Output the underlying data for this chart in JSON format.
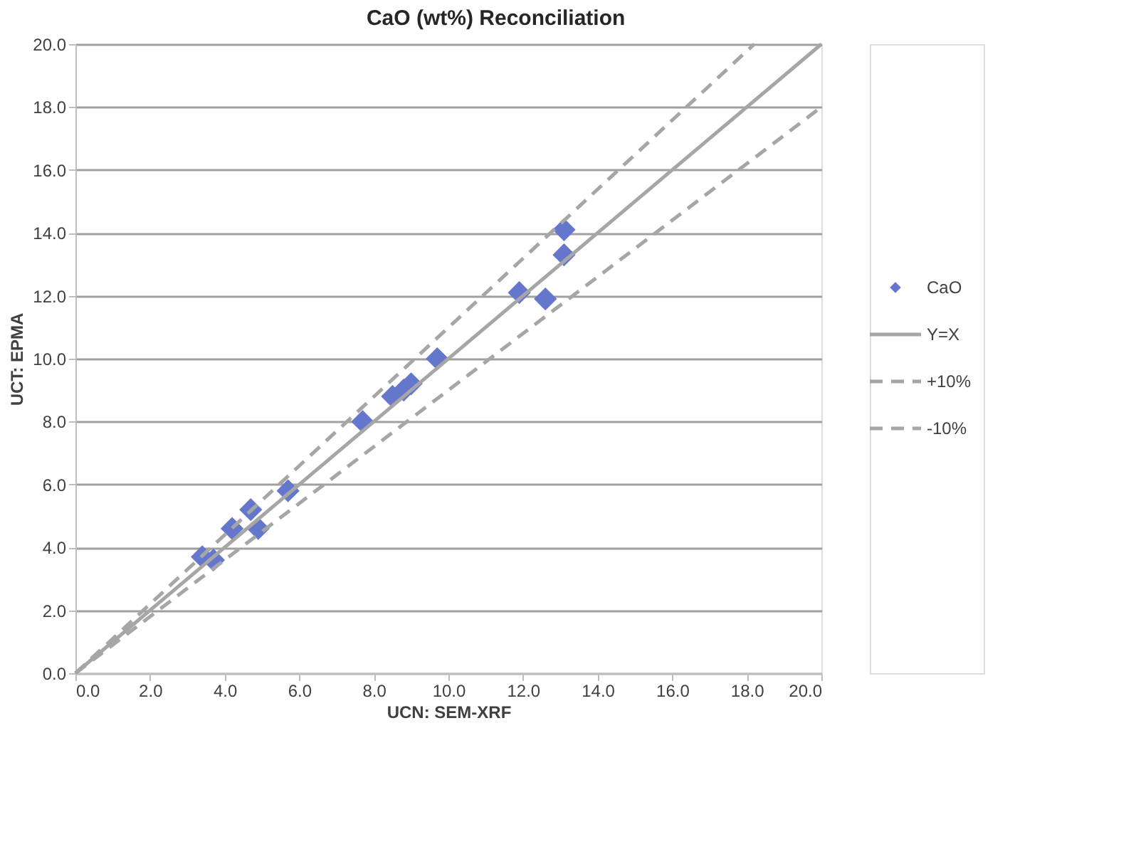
{
  "chart_data": {
    "type": "scatter",
    "title": "CaO (wt%) Reconciliation",
    "xlabel": "UCN: SEM-XRF",
    "ylabel": "UCT: EPMA",
    "x": [
      13.1,
      13.1,
      11.9,
      12.6,
      9.7,
      9.0,
      8.8,
      8.5,
      7.7,
      5.7,
      4.7,
      4.9,
      4.2,
      3.4,
      3.7
    ],
    "series": [
      {
        "name": "CaO",
        "type": "scatter",
        "color": "#6577cc",
        "marker": "diamond",
        "values": [
          14.1,
          13.3,
          12.1,
          11.9,
          10.0,
          9.2,
          9.0,
          8.8,
          8.0,
          5.8,
          5.2,
          4.6,
          4.6,
          3.7,
          3.6
        ]
      },
      {
        "name": "Y=X",
        "type": "line",
        "color": "#a6a6a6",
        "line_style": "solid",
        "marker": "none",
        "x": [
          0,
          20
        ],
        "values": [
          0,
          20
        ]
      },
      {
        "name": "+10%",
        "type": "line",
        "color": "#a6a6a6",
        "line_style": "dashed",
        "marker": "none",
        "x": [
          0,
          18.2
        ],
        "values": [
          0,
          20
        ]
      },
      {
        "name": "-10%",
        "type": "line",
        "color": "#a6a6a6",
        "line_style": "dashed",
        "marker": "none",
        "x": [
          0,
          20
        ],
        "values": [
          0,
          18
        ]
      }
    ],
    "xlim": [
      0,
      20
    ],
    "ylim": [
      0,
      20
    ],
    "xticks": [
      {
        "value": 0,
        "label": "0.0"
      },
      {
        "value": 2,
        "label": "2.0"
      },
      {
        "value": 4,
        "label": "4.0"
      },
      {
        "value": 6,
        "label": "6.0"
      },
      {
        "value": 8,
        "label": "8.0"
      },
      {
        "value": 10,
        "label": "10.0"
      },
      {
        "value": 12,
        "label": "12.0"
      },
      {
        "value": 14,
        "label": "14.0"
      },
      {
        "value": 16,
        "label": "16.0"
      },
      {
        "value": 18,
        "label": "18.0"
      },
      {
        "value": 20,
        "label": "20.0"
      }
    ],
    "yticks": [
      {
        "value": 0,
        "label": "0.0"
      },
      {
        "value": 2,
        "label": "2.0"
      },
      {
        "value": 4,
        "label": "4.0"
      },
      {
        "value": 6,
        "label": "6.0"
      },
      {
        "value": 8,
        "label": "8.0"
      },
      {
        "value": 10,
        "label": "10.0"
      },
      {
        "value": 12,
        "label": "12.0"
      },
      {
        "value": 14,
        "label": "14.0"
      },
      {
        "value": 16,
        "label": "16.0"
      },
      {
        "value": 18,
        "label": "18.0"
      },
      {
        "value": 20,
        "label": "20.0"
      }
    ],
    "grid": "y",
    "legend": "right"
  }
}
